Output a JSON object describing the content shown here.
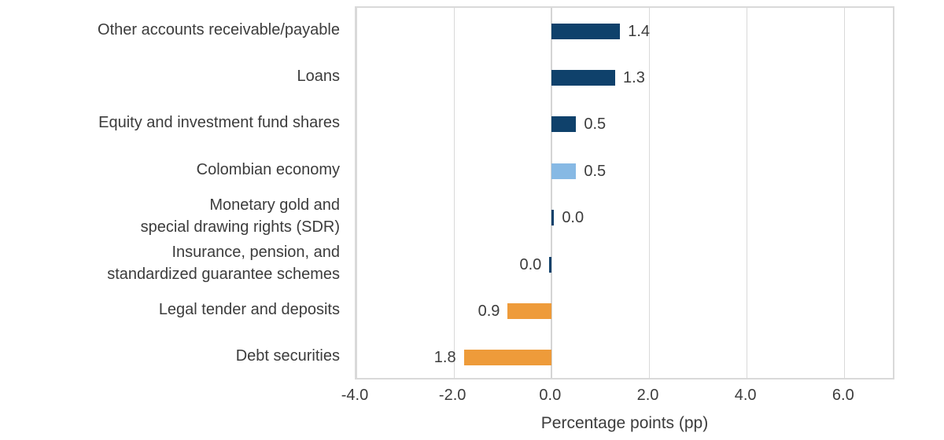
{
  "chart_data": {
    "type": "bar",
    "orientation": "horizontal",
    "title": "",
    "xlabel": "Percentage points (pp)",
    "ylabel": "",
    "categories": [
      "Other accounts receivable/payable",
      "Loans",
      "Equity and investment fund shares",
      "Colombian economy",
      "Monetary gold and\nspecial drawing rights (SDR)",
      "Insurance, pension, and\nstandardized guarantee schemes",
      "Legal tender and deposits",
      "Debt securities"
    ],
    "values": [
      1.4,
      1.3,
      0.5,
      0.5,
      0.0,
      0.0,
      -0.9,
      -1.8
    ],
    "bar_directions": [
      1,
      1,
      1,
      1,
      1,
      -1,
      -1,
      -1
    ],
    "value_labels": [
      "1.4",
      "1.3",
      "0.5",
      "0.5",
      "0.0",
      "0.0",
      "0.9",
      "1.8"
    ],
    "bar_color_keys": [
      "navy",
      "navy",
      "navy",
      "highlight",
      "navy",
      "navy",
      "negative",
      "negative"
    ],
    "colors": {
      "navy": "#0F416B",
      "highlight": "#87B9E4",
      "negative": "#EE9B3A",
      "grid": "#d9d9d9",
      "text": "#3c3c3c"
    },
    "xlim": [
      -4.0,
      7.05
    ],
    "x_ticks": [
      -4.0,
      -2.0,
      0.0,
      2.0,
      4.0,
      6.0
    ],
    "x_tick_labels": [
      "-4.0",
      "-2.0",
      "0.0",
      "2.0",
      "4.0",
      "6.0"
    ],
    "grid": true,
    "legend": false
  }
}
